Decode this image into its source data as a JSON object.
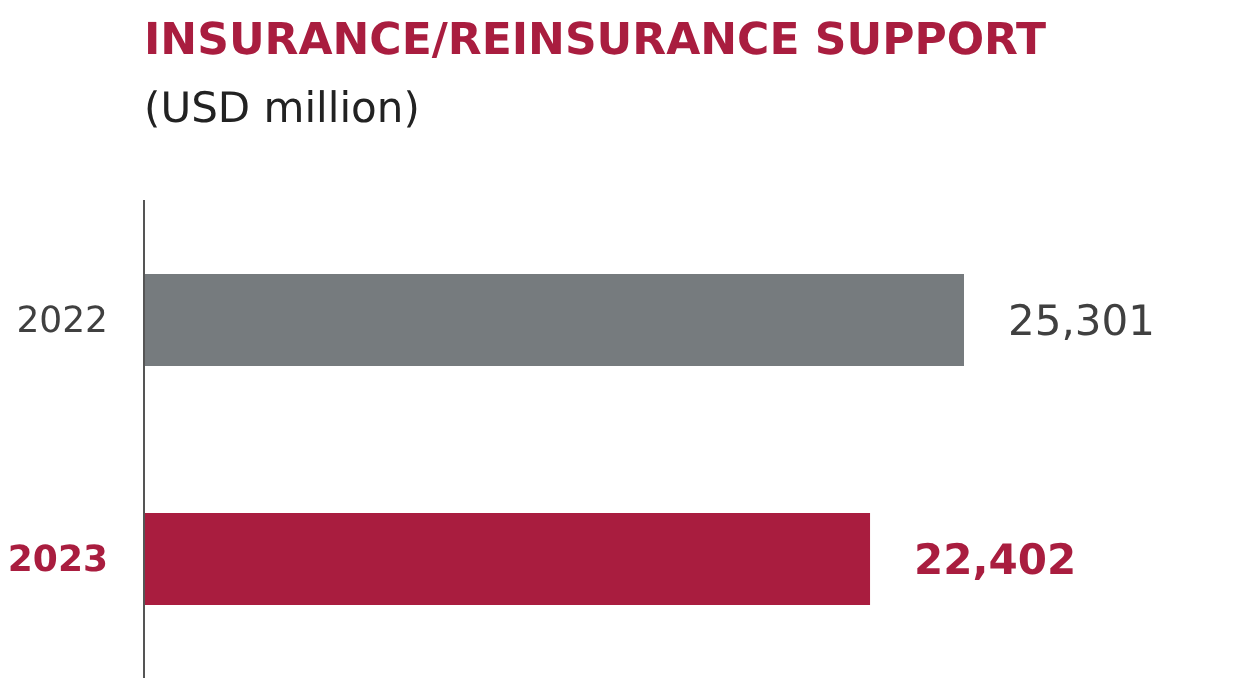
{
  "chart_data": {
    "type": "bar",
    "orientation": "horizontal",
    "title": "INSURANCE/REINSURANCE SUPPORT",
    "subtitle": "(USD million)",
    "categories": [
      "2022",
      "2023"
    ],
    "values": [
      25301,
      22402
    ],
    "colors": [
      "#767b7e",
      "#a91d3f"
    ],
    "value_labels": [
      "25,301",
      "22,402"
    ]
  }
}
